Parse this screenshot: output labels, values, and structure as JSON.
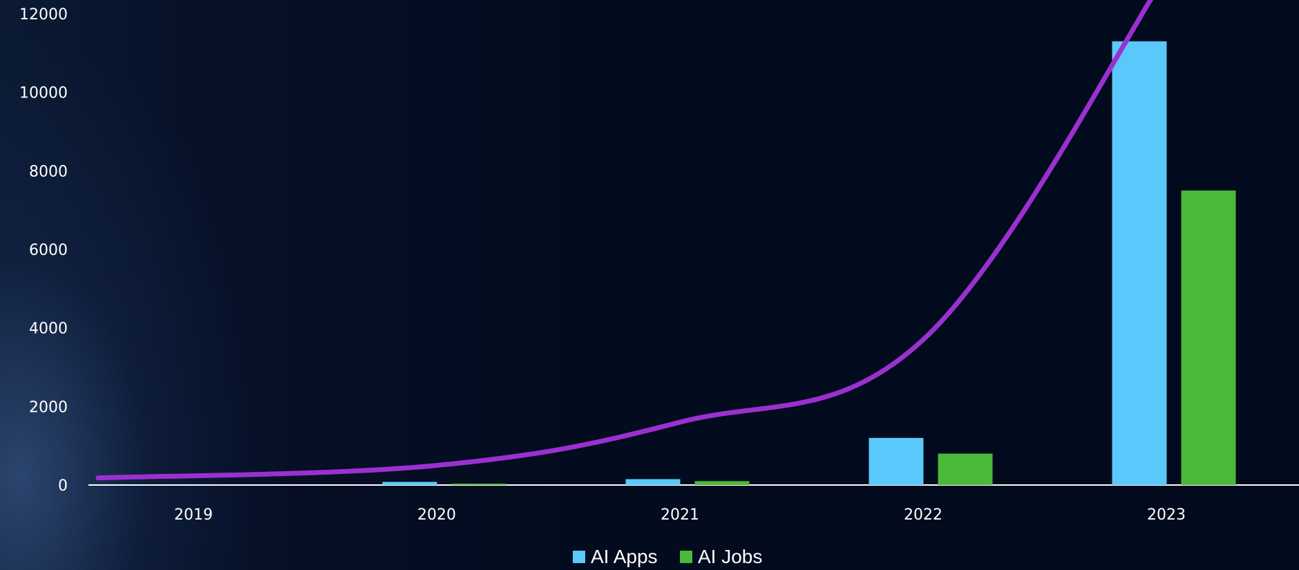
{
  "chart_data": {
    "type": "bar",
    "categories": [
      "2019",
      "2020",
      "2021",
      "2022",
      "2023"
    ],
    "series": [
      {
        "name": "AI Apps",
        "type": "bar",
        "color": "#5ac8fa",
        "values": [
          0,
          80,
          150,
          1200,
          11300
        ]
      },
      {
        "name": "AI Jobs",
        "type": "bar",
        "color": "#4ab838",
        "values": [
          0,
          20,
          100,
          800,
          7500
        ]
      },
      {
        "type": "line",
        "color": "#9b30d0",
        "values": [
          180,
          500,
          1600,
          3700,
          13000
        ]
      }
    ],
    "ylim": [
      0,
      12000
    ],
    "yticks": [
      "0",
      "2000",
      "4000",
      "6000",
      "8000",
      "10000",
      "12000"
    ],
    "grid": false,
    "legend": "bottom-center"
  }
}
